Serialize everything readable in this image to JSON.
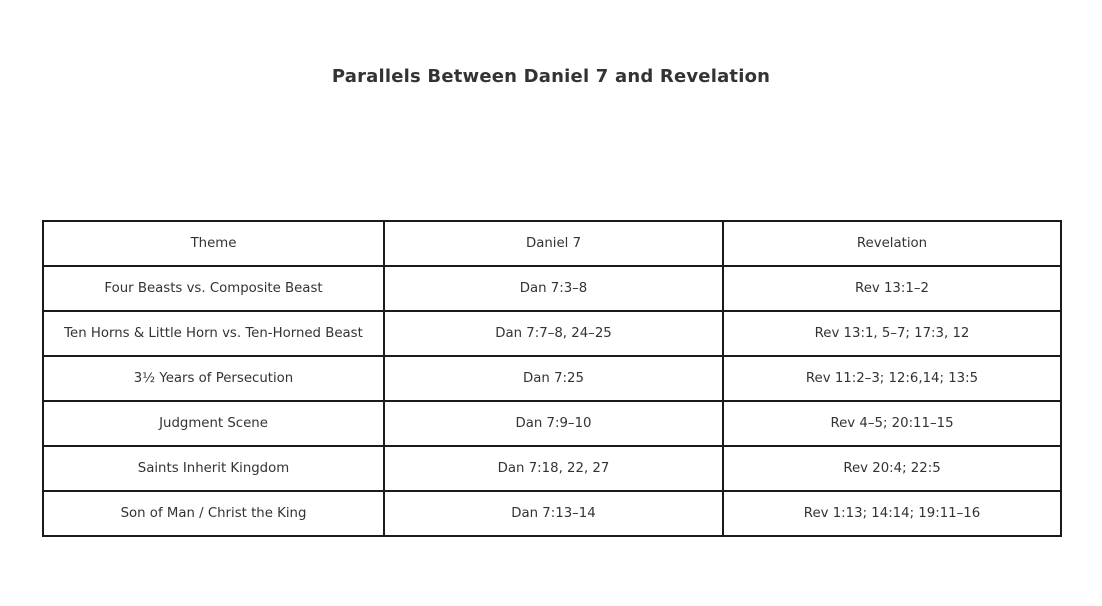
{
  "title": "Parallels Between Daniel 7 and Revelation",
  "colors": {
    "background": "#ffffff",
    "text": "#333333",
    "border": "#1a1a1a"
  },
  "chart_data": {
    "type": "table",
    "title": "Parallels Between Daniel 7 and Revelation",
    "columns": [
      "Theme",
      "Daniel 7",
      "Revelation"
    ],
    "rows": [
      [
        "Four Beasts vs. Composite Beast",
        "Dan 7:3–8",
        "Rev 13:1–2"
      ],
      [
        "Ten Horns & Little Horn vs. Ten-Horned Beast",
        "Dan 7:7–8, 24–25",
        "Rev 13:1, 5–7; 17:3, 12"
      ],
      [
        "3½ Years of Persecution",
        "Dan 7:25",
        "Rev 11:2–3; 12:6,14; 13:5"
      ],
      [
        "Judgment Scene",
        "Dan 7:9–10",
        "Rev 4–5; 20:11–15"
      ],
      [
        "Saints Inherit Kingdom",
        "Dan 7:18, 22, 27",
        "Rev 20:4; 22:5"
      ],
      [
        "Son of Man / Christ the King",
        "Dan 7:13–14",
        "Rev 1:13; 14:14; 19:11–16"
      ]
    ],
    "layout": {
      "title_position": "top-center",
      "grid": true,
      "cell_text_align": "center"
    }
  }
}
